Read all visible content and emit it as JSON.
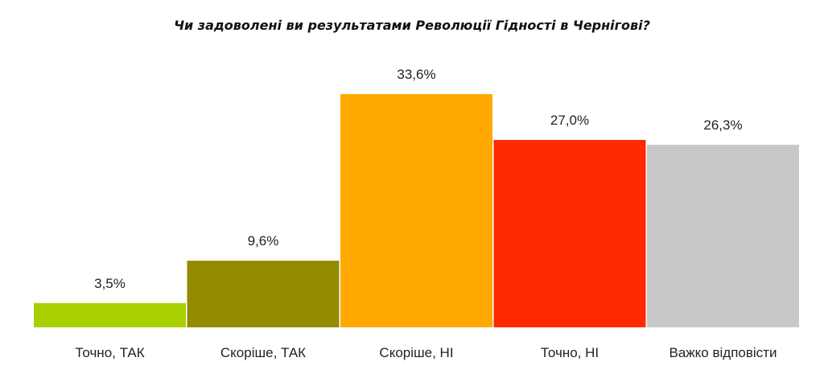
{
  "chart_data": {
    "type": "bar",
    "title": "Чи задоволені  ви результатами  Революції Гідності в Чернігові?",
    "categories": [
      "Точно, ТАК",
      "Скоріше, ТАК",
      "Скоріше, НІ",
      "Точно, НІ",
      "Важко відповісти"
    ],
    "values": [
      3.5,
      9.6,
      33.6,
      27.0,
      26.3
    ],
    "value_labels": [
      "3,5%",
      "9,6%",
      "33,6%",
      "27,0%",
      "26,3%"
    ],
    "colors": [
      "#a8d000",
      "#948b00",
      "#ffa800",
      "#ff2a00",
      "#c8c8c8"
    ],
    "xlabel": "",
    "ylabel": "",
    "ylim": [
      0,
      33.6
    ],
    "grid": false,
    "legend": "none"
  }
}
